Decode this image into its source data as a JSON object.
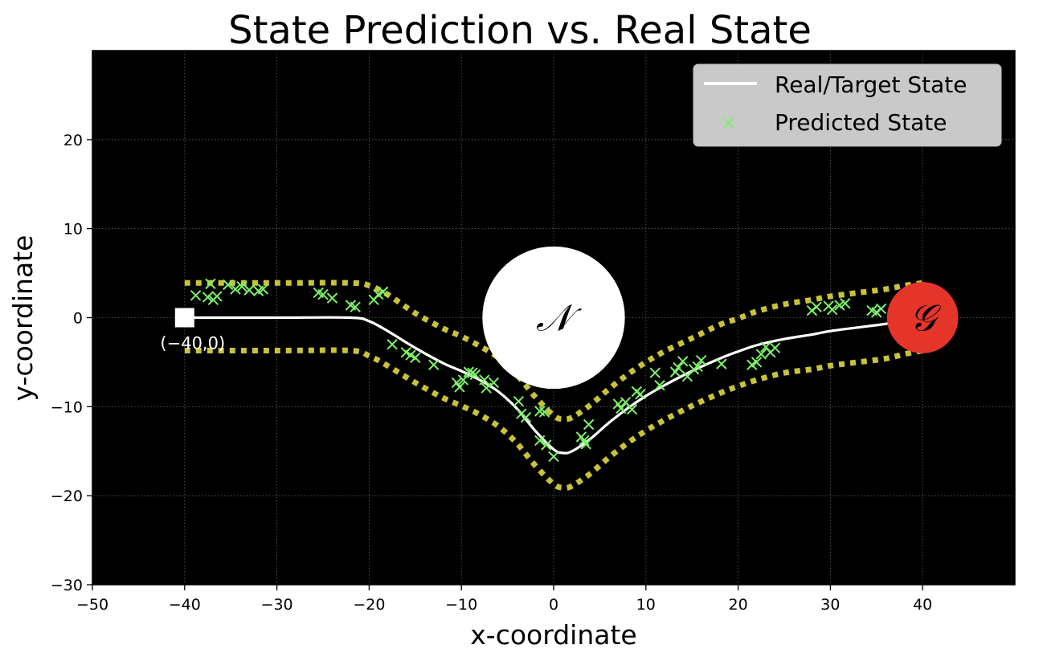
{
  "chart_data": {
    "type": "line",
    "title": "State Prediction vs. Real State",
    "xlabel": "x-coordinate",
    "ylabel": "y-coordinate",
    "xlim": [
      -50,
      50
    ],
    "ylim": [
      -30,
      30
    ],
    "xticks": [
      -50,
      -40,
      -30,
      -20,
      -10,
      0,
      10,
      20,
      30,
      40
    ],
    "yticks": [
      -30,
      -20,
      -10,
      0,
      10,
      20
    ],
    "xtick_labels": [
      "−50",
      "−40",
      "−30",
      "−20",
      "−10",
      "0",
      "10",
      "20",
      "30",
      "40"
    ],
    "ytick_labels": [
      "−30",
      "−20",
      "−10",
      "0",
      "10",
      "20"
    ],
    "grid": true,
    "background": "#000000",
    "legend": {
      "placement": "top-right",
      "entries": [
        "Real/Target State",
        "Predicted State"
      ]
    },
    "series": [
      {
        "name": "Real/Target State",
        "kind": "line",
        "color": "#ffffff",
        "x": [
          -40,
          -30,
          -22,
          -20,
          -18,
          -15,
          -12,
          -10,
          -8,
          -6,
          -4,
          -2,
          0,
          1,
          2,
          4,
          6,
          8,
          10,
          12,
          15,
          18,
          20,
          22,
          25,
          28,
          30,
          33,
          36,
          38,
          39.5
        ],
        "y": [
          0,
          0,
          0,
          -0.4,
          -1.5,
          -3.4,
          -5.1,
          -6.0,
          -7.0,
          -8.3,
          -10.2,
          -12.7,
          -14.8,
          -15.2,
          -15.0,
          -13.6,
          -11.8,
          -10.2,
          -8.8,
          -7.6,
          -6.0,
          -4.6,
          -3.8,
          -3.1,
          -2.4,
          -1.9,
          -1.5,
          -1.1,
          -0.7,
          -0.3,
          0
        ]
      },
      {
        "name": "Predicted State",
        "kind": "scatter",
        "color": "#7ef06a",
        "points": [
          [
            -38.8,
            2.5
          ],
          [
            -37.5,
            2.3
          ],
          [
            -37.2,
            3.8
          ],
          [
            -36.9,
            2.0
          ],
          [
            -36.5,
            2.4
          ],
          [
            -35.3,
            3.7
          ],
          [
            -34.5,
            3.2
          ],
          [
            -33.8,
            3.5
          ],
          [
            -33,
            3.1
          ],
          [
            -32,
            3.0
          ],
          [
            -31.5,
            3.2
          ],
          [
            -25.5,
            2.8
          ],
          [
            -25,
            2.6
          ],
          [
            -24,
            2.2
          ],
          [
            -22,
            1.4
          ],
          [
            -21.5,
            1.2
          ],
          [
            -19.5,
            2.0
          ],
          [
            -19,
            2.6
          ],
          [
            -18.5,
            2.9
          ],
          [
            -17.5,
            -3.0
          ],
          [
            -16,
            -3.9
          ],
          [
            -15.5,
            -4.2
          ],
          [
            -15,
            -4.5
          ],
          [
            -13,
            -5.3
          ],
          [
            -10.5,
            -7.3
          ],
          [
            -10.2,
            -7.8
          ],
          [
            -9.8,
            -7.0
          ],
          [
            -9.2,
            -6.1
          ],
          [
            -8.8,
            -6.2
          ],
          [
            -8.5,
            -6.4
          ],
          [
            -7.5,
            -7.0
          ],
          [
            -7.3,
            -7.9
          ],
          [
            -6.5,
            -7.3
          ],
          [
            -3.8,
            -9.4
          ],
          [
            -3.5,
            -10.8
          ],
          [
            -3,
            -11.2
          ],
          [
            -1.5,
            -10.5
          ],
          [
            -1,
            -10.6
          ],
          [
            -1.5,
            -13.8
          ],
          [
            -0.8,
            -14.3
          ],
          [
            0,
            -15.6
          ],
          [
            3,
            -13.4
          ],
          [
            3.3,
            -13.8
          ],
          [
            3.5,
            -14.2
          ],
          [
            3.8,
            -12.0
          ],
          [
            7,
            -9.7
          ],
          [
            7.3,
            -10.2
          ],
          [
            7.8,
            -9.5
          ],
          [
            8.5,
            -10.3
          ],
          [
            9,
            -8.3
          ],
          [
            9.4,
            -8.6
          ],
          [
            11,
            -6.2
          ],
          [
            11.5,
            -7.6
          ],
          [
            13.2,
            -6.1
          ],
          [
            13.5,
            -5.6
          ],
          [
            14,
            -4.9
          ],
          [
            14.5,
            -6.6
          ],
          [
            15.2,
            -5.8
          ],
          [
            15.6,
            -5.5
          ],
          [
            16,
            -4.8
          ],
          [
            18.2,
            -5.2
          ],
          [
            21.5,
            -5.3
          ],
          [
            22,
            -5.0
          ],
          [
            22.5,
            -4.1
          ],
          [
            23,
            -3.3
          ],
          [
            23.5,
            -3.9
          ],
          [
            24,
            -3.4
          ],
          [
            28,
            0.8
          ],
          [
            28.5,
            1.2
          ],
          [
            29.8,
            1.3
          ],
          [
            30.2,
            0.9
          ],
          [
            31,
            1.4
          ],
          [
            31.6,
            1.6
          ],
          [
            34.5,
            0.8
          ],
          [
            35,
            0.6
          ],
          [
            35.5,
            1.0
          ]
        ]
      },
      {
        "name": "",
        "kind": "dotted-boundary",
        "color": "#c8c23a",
        "x": [
          -40,
          -30,
          -22,
          -20,
          -18,
          -15,
          -12,
          -10,
          -8,
          -6,
          -4,
          -2,
          0,
          1,
          2,
          4,
          6,
          8,
          10,
          12,
          15,
          18,
          20,
          22,
          25,
          28,
          30,
          33,
          36,
          38,
          40
        ],
        "y": [
          3.9,
          3.9,
          3.9,
          3.6,
          2.6,
          0.5,
          -1.2,
          -2.1,
          -3.2,
          -4.5,
          -6.4,
          -8.9,
          -11.0,
          -11.4,
          -11.2,
          -9.8,
          -8.0,
          -6.4,
          -5.0,
          -3.8,
          -2.3,
          -0.8,
          -0.1,
          0.7,
          1.5,
          2.0,
          2.4,
          2.8,
          3.2,
          3.6,
          3.9
        ]
      },
      {
        "name": "",
        "kind": "dotted-boundary",
        "color": "#c8c23a",
        "x": [
          -40,
          -30,
          -22,
          -20,
          -18,
          -15,
          -12,
          -10,
          -8,
          -6,
          -4,
          -2,
          0,
          1,
          2,
          4,
          6,
          8,
          10,
          12,
          15,
          18,
          20,
          22,
          25,
          28,
          30,
          33,
          36,
          38,
          40
        ],
        "y": [
          -3.7,
          -3.7,
          -3.7,
          -4.3,
          -5.4,
          -7.3,
          -9.0,
          -9.9,
          -10.9,
          -12.2,
          -14.1,
          -16.6,
          -18.7,
          -19.1,
          -18.9,
          -17.5,
          -15.7,
          -14.1,
          -12.7,
          -11.5,
          -9.9,
          -8.5,
          -7.7,
          -7.0,
          -6.2,
          -5.8,
          -5.4,
          -5.0,
          -4.6,
          -4.1,
          -3.7
        ]
      }
    ],
    "regions": [
      {
        "label": "𝒩",
        "center": [
          0,
          0
        ],
        "radius": 8,
        "color": "#ffffff",
        "label_color": "#000000"
      },
      {
        "label": "𝒢",
        "center": [
          40,
          0
        ],
        "radius": 4,
        "color": "#e5352a",
        "label_color": "#000000"
      }
    ],
    "markers": [
      {
        "kind": "square",
        "at": [
          -40,
          0
        ],
        "color": "#ffffff",
        "label": "(−40,0)"
      }
    ]
  }
}
